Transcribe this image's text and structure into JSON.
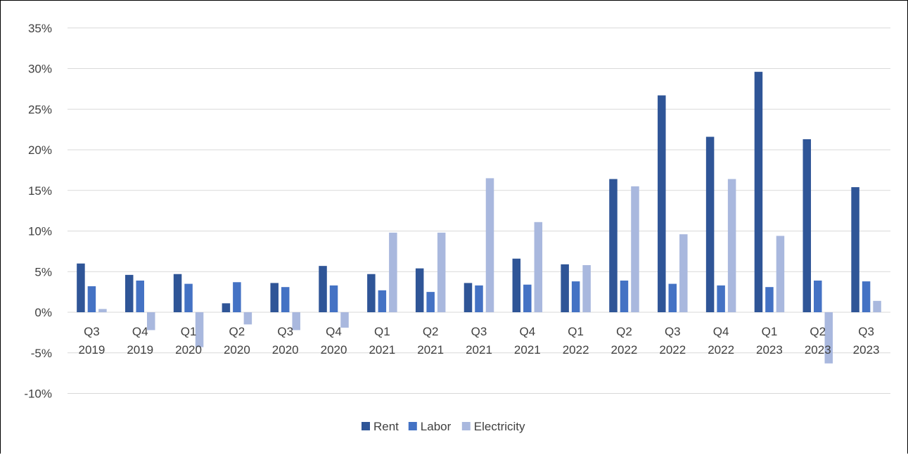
{
  "chart_data": {
    "type": "bar",
    "title": "",
    "xlabel": "",
    "ylabel": "",
    "ylim": [
      -0.1,
      0.35
    ],
    "yticks": [
      {
        "v": 0.35,
        "label": "35%"
      },
      {
        "v": 0.3,
        "label": "30%"
      },
      {
        "v": 0.25,
        "label": "25%"
      },
      {
        "v": 0.2,
        "label": "20%"
      },
      {
        "v": 0.15,
        "label": "15%"
      },
      {
        "v": 0.1,
        "label": "10%"
      },
      {
        "v": 0.05,
        "label": "5%"
      },
      {
        "v": 0.0,
        "label": "0%"
      },
      {
        "v": -0.05,
        "label": "-5%"
      },
      {
        "v": -0.1,
        "label": "-10%"
      }
    ],
    "categories": [
      [
        "Q3",
        "2019"
      ],
      [
        "Q4",
        "2019"
      ],
      [
        "Q1",
        "2020"
      ],
      [
        "Q2",
        "2020"
      ],
      [
        "Q3",
        "2020"
      ],
      [
        "Q4",
        "2020"
      ],
      [
        "Q1",
        "2021"
      ],
      [
        "Q2",
        "2021"
      ],
      [
        "Q3",
        "2021"
      ],
      [
        "Q4",
        "2021"
      ],
      [
        "Q1",
        "2022"
      ],
      [
        "Q2",
        "2022"
      ],
      [
        "Q3",
        "2022"
      ],
      [
        "Q4",
        "2022"
      ],
      [
        "Q1",
        "2023"
      ],
      [
        "Q2",
        "2023"
      ],
      [
        "Q3",
        "2023"
      ]
    ],
    "series": [
      {
        "name": "Rent",
        "color": "#2f5597",
        "values": [
          0.06,
          0.046,
          0.047,
          0.011,
          0.036,
          0.057,
          0.047,
          0.054,
          0.036,
          0.066,
          0.059,
          0.164,
          0.267,
          0.216,
          0.296,
          0.213,
          0.154
        ]
      },
      {
        "name": "Labor",
        "color": "#4472c4",
        "values": [
          0.032,
          0.039,
          0.035,
          0.037,
          0.031,
          0.033,
          0.027,
          0.025,
          0.033,
          0.034,
          0.038,
          0.039,
          0.035,
          0.033,
          0.031,
          0.039,
          0.038
        ]
      },
      {
        "name": "Electricity",
        "color": "#a9b8de",
        "values": [
          0.004,
          -0.022,
          -0.043,
          -0.015,
          -0.022,
          -0.019,
          0.098,
          0.098,
          0.165,
          0.111,
          0.058,
          0.155,
          0.096,
          0.164,
          0.094,
          -0.063,
          0.014
        ]
      }
    ],
    "legend_position": "bottom",
    "grid": true
  }
}
